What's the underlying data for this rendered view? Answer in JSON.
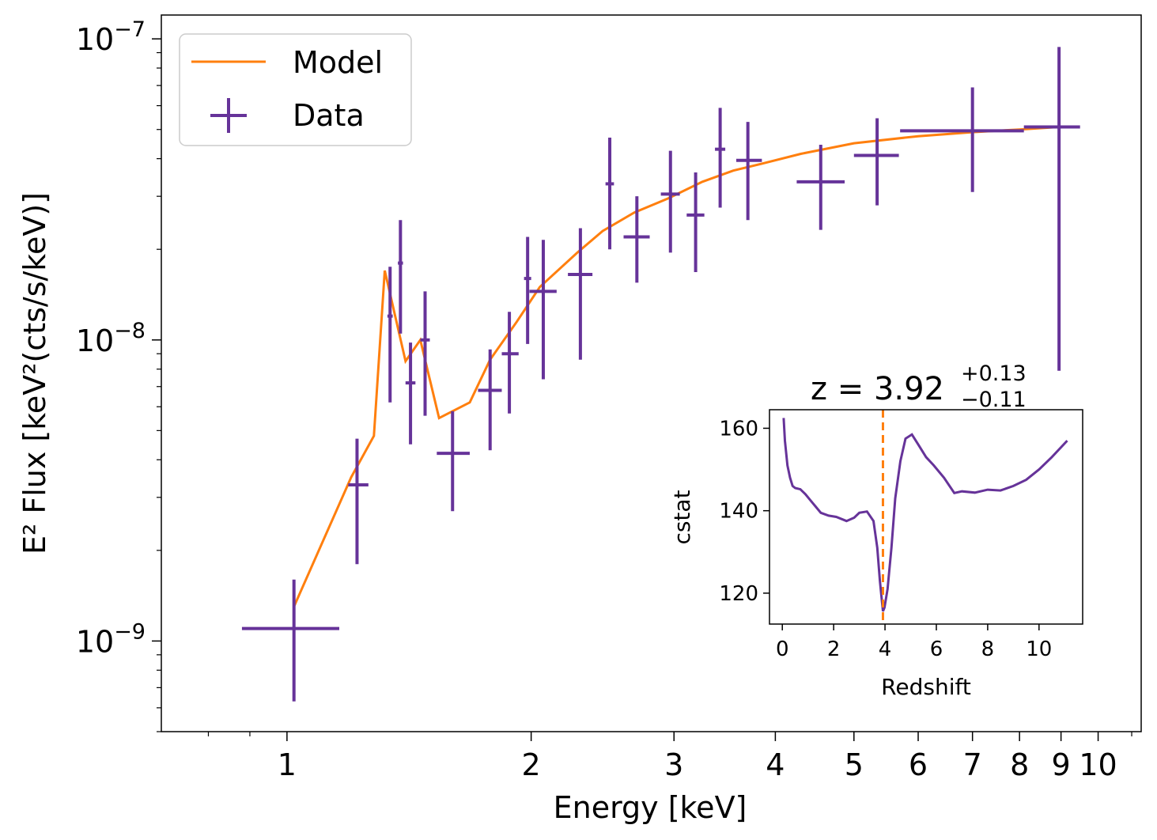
{
  "colors": {
    "model": "#ff7f0e",
    "data": "#663399",
    "inset_line": "#663399",
    "marker": "#ff7f0e"
  },
  "chart_data": [
    {
      "type": "scatter",
      "xlabel": "Energy [keV]",
      "ylabel": "E² Flux [keV²(cts/s/keV)]",
      "xscale": "log",
      "yscale": "log",
      "xlim": [
        0.7,
        11.3
      ],
      "ylim": [
        5e-10,
        1.2e-07
      ],
      "xticks": [
        {
          "value": 1,
          "label": "1"
        },
        {
          "value": 2,
          "label": "2"
        },
        {
          "value": 3,
          "label": "3"
        },
        {
          "value": 4,
          "label": "4"
        },
        {
          "value": 5,
          "label": "5"
        },
        {
          "value": 6,
          "label": "6"
        },
        {
          "value": 7,
          "label": "7"
        },
        {
          "value": 8,
          "label": "8"
        },
        {
          "value": 9,
          "label": "9"
        },
        {
          "value": 10,
          "label": "10"
        }
      ],
      "yticks": [
        {
          "value": 1e-09,
          "base": "10",
          "exp": "−9"
        },
        {
          "value": 1e-08,
          "base": "10",
          "exp": "−8"
        },
        {
          "value": 1e-07,
          "base": "10",
          "exp": "−7"
        }
      ],
      "legend": {
        "position": "upper-left",
        "model_label": "Model",
        "data_label": "Data"
      },
      "model": {
        "name": "Model",
        "x": [
          1.02,
          1.2,
          1.28,
          1.32,
          1.4,
          1.46,
          1.54,
          1.68,
          1.78,
          1.92,
          2.05,
          2.28,
          2.45,
          2.68,
          2.95,
          3.25,
          3.55,
          3.85,
          4.3,
          5.0,
          6.0,
          7.0,
          8.0,
          9.0
        ],
        "y": [
          1.3e-09,
          3.5e-09,
          4.8e-09,
          1.7e-08,
          8.5e-09,
          1e-08,
          5.5e-09,
          6.2e-09,
          8.6e-09,
          1.15e-08,
          1.5e-08,
          1.95e-08,
          2.3e-08,
          2.65e-08,
          2.95e-08,
          3.35e-08,
          3.65e-08,
          3.85e-08,
          4.15e-08,
          4.5e-08,
          4.75e-08,
          4.9e-08,
          5e-08,
          5.1e-08
        ]
      },
      "data": {
        "name": "Data",
        "points": [
          {
            "x": 1.02,
            "xlo": 0.88,
            "xhi": 1.16,
            "y": 1.1e-09,
            "ylo": 6.3e-10,
            "yhi": 1.6e-09
          },
          {
            "x": 1.22,
            "xlo": 1.19,
            "xhi": 1.26,
            "y": 3.3e-09,
            "ylo": 1.8e-09,
            "yhi": 4.7e-09
          },
          {
            "x": 1.34,
            "xlo": 1.33,
            "xhi": 1.35,
            "y": 1.2e-08,
            "ylo": 6.2e-09,
            "yhi": 1.75e-08
          },
          {
            "x": 1.38,
            "xlo": 1.37,
            "xhi": 1.39,
            "y": 1.8e-08,
            "ylo": 1.05e-08,
            "yhi": 2.5e-08
          },
          {
            "x": 1.42,
            "xlo": 1.4,
            "xhi": 1.44,
            "y": 7.2e-09,
            "ylo": 4.5e-09,
            "yhi": 9.8e-09
          },
          {
            "x": 1.48,
            "xlo": 1.46,
            "xhi": 1.5,
            "y": 1e-08,
            "ylo": 5.6e-09,
            "yhi": 1.45e-08
          },
          {
            "x": 1.6,
            "xlo": 1.53,
            "xhi": 1.68,
            "y": 4.2e-09,
            "ylo": 2.7e-09,
            "yhi": 5.8e-09
          },
          {
            "x": 1.78,
            "xlo": 1.72,
            "xhi": 1.84,
            "y": 6.8e-09,
            "ylo": 4.3e-09,
            "yhi": 9.3e-09
          },
          {
            "x": 1.88,
            "xlo": 1.84,
            "xhi": 1.93,
            "y": 9e-09,
            "ylo": 5.7e-09,
            "yhi": 1.24e-08
          },
          {
            "x": 1.98,
            "xlo": 1.96,
            "xhi": 2.0,
            "y": 1.6e-08,
            "ylo": 9.7e-09,
            "yhi": 2.2e-08
          },
          {
            "x": 2.07,
            "xlo": 1.99,
            "xhi": 2.15,
            "y": 1.45e-08,
            "ylo": 7.4e-09,
            "yhi": 2.15e-08
          },
          {
            "x": 2.3,
            "xlo": 2.22,
            "xhi": 2.38,
            "y": 1.65e-08,
            "ylo": 8.6e-09,
            "yhi": 2.35e-08
          },
          {
            "x": 2.5,
            "xlo": 2.47,
            "xhi": 2.53,
            "y": 3.3e-08,
            "ylo": 2e-08,
            "yhi": 4.7e-08
          },
          {
            "x": 2.7,
            "xlo": 2.6,
            "xhi": 2.8,
            "y": 2.2e-08,
            "ylo": 1.55e-08,
            "yhi": 3e-08
          },
          {
            "x": 2.97,
            "xlo": 2.89,
            "xhi": 3.05,
            "y": 3.05e-08,
            "ylo": 1.95e-08,
            "yhi": 4.25e-08
          },
          {
            "x": 3.19,
            "xlo": 3.11,
            "xhi": 3.27,
            "y": 2.6e-08,
            "ylo": 1.68e-08,
            "yhi": 3.6e-08
          },
          {
            "x": 3.42,
            "xlo": 3.37,
            "xhi": 3.47,
            "y": 4.3e-08,
            "ylo": 2.75e-08,
            "yhi": 5.9e-08
          },
          {
            "x": 3.7,
            "xlo": 3.58,
            "xhi": 3.85,
            "y": 3.95e-08,
            "ylo": 2.5e-08,
            "yhi": 5.3e-08
          },
          {
            "x": 4.55,
            "xlo": 4.25,
            "xhi": 4.87,
            "y": 3.35e-08,
            "ylo": 2.32e-08,
            "yhi": 4.45e-08
          },
          {
            "x": 5.34,
            "xlo": 5.0,
            "xhi": 5.68,
            "y": 4.1e-08,
            "ylo": 2.8e-08,
            "yhi": 5.45e-08
          },
          {
            "x": 7.0,
            "xlo": 5.7,
            "xhi": 8.1,
            "y": 4.95e-08,
            "ylo": 3.1e-08,
            "yhi": 6.9e-08
          },
          {
            "x": 8.95,
            "xlo": 8.1,
            "xhi": 9.5,
            "y": 5.1e-08,
            "ylo": 7.9e-09,
            "yhi": 9.4e-08
          }
        ]
      }
    },
    {
      "type": "line",
      "title": {
        "main": "z = 3.92",
        "sup": "+0.13",
        "sub": "−0.11"
      },
      "xlabel": "Redshift",
      "ylabel": "cstat",
      "xlim": [
        -0.5,
        11.7
      ],
      "ylim": [
        112.5,
        164.5
      ],
      "xticks": [
        0,
        2,
        4,
        6,
        8,
        10
      ],
      "yticks": [
        120,
        140,
        160
      ],
      "best_z": 3.92,
      "series": [
        {
          "x": [
            0.05,
            0.1,
            0.2,
            0.3,
            0.4,
            0.5,
            0.7,
            0.9,
            1.1,
            1.3,
            1.5,
            1.8,
            2.1,
            2.5,
            2.8,
            3.0,
            3.3,
            3.55,
            3.7,
            3.8,
            3.88,
            3.92,
            3.98,
            4.1,
            4.25,
            4.4,
            4.6,
            4.8,
            5.05,
            5.3,
            5.6,
            5.9,
            6.3,
            6.7,
            7.0,
            7.5,
            8.0,
            8.5,
            9.0,
            9.5,
            10.0,
            10.5,
            11.1
          ],
          "y": [
            162.5,
            157,
            151,
            148,
            146,
            145.5,
            145.2,
            144,
            142.5,
            141,
            139.5,
            138.8,
            138.5,
            137.5,
            138.3,
            139.5,
            139.8,
            137.5,
            131,
            123,
            118,
            115.6,
            116.5,
            121,
            131,
            143,
            152,
            157.5,
            158.5,
            156,
            153,
            151,
            148,
            144.3,
            144.7,
            144.4,
            145.1,
            144.9,
            146,
            147.5,
            150,
            153,
            157
          ]
        }
      ]
    }
  ]
}
